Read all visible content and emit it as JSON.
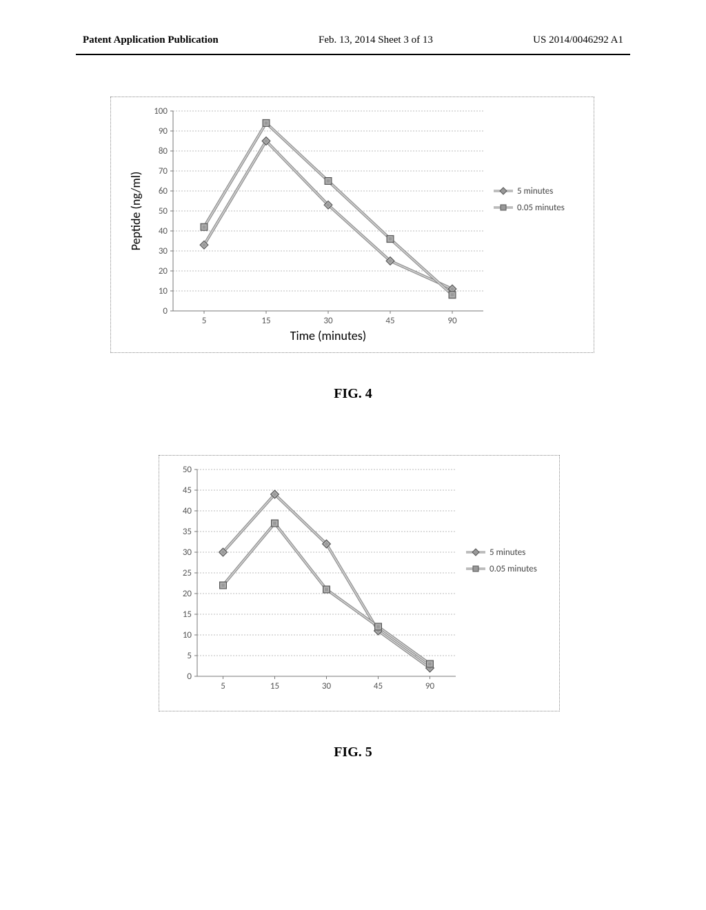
{
  "header": {
    "left": "Patent Application Publication",
    "mid": "Feb. 13, 2014  Sheet 3 of 13",
    "right": "US 2014/0046292 A1"
  },
  "fig4_label": "FIG. 4",
  "fig5_label": "FIG. 5",
  "chart1": {
    "type": "line",
    "x_categories": [
      "5",
      "15",
      "30",
      "45",
      "90"
    ],
    "x_label": "Time (minutes)",
    "y_label": "Peptide (ng/ml)",
    "ylim": [
      0,
      100
    ],
    "ytick_step": 10,
    "grid_color": "#bbbbbb",
    "background_color": "#ffffff",
    "axis_fontsize": 13,
    "label_fontsize": 18,
    "series": [
      {
        "name": "5 minutes",
        "marker": "diamond",
        "color_outer": "#888888",
        "color_inner": "#cccccc",
        "values": [
          33,
          85,
          53,
          25,
          11
        ]
      },
      {
        "name": "0.05 minutes",
        "marker": "square",
        "color_outer": "#888888",
        "color_inner": "#cccccc",
        "values": [
          42,
          94,
          65,
          36,
          8
        ]
      }
    ],
    "legend_items": [
      "5 minutes",
      "0.05 minutes"
    ]
  },
  "chart2": {
    "type": "line",
    "x_categories": [
      "5",
      "15",
      "30",
      "45",
      "90"
    ],
    "x_label": "",
    "y_label": "",
    "ylim": [
      0,
      50
    ],
    "ytick_step": 5,
    "grid_color": "#bbbbbb",
    "background_color": "#ffffff",
    "axis_fontsize": 13,
    "label_fontsize": 18,
    "series": [
      {
        "name": "5 minutes",
        "marker": "diamond",
        "color_outer": "#888888",
        "color_inner": "#cccccc",
        "values": [
          30,
          44,
          32,
          11,
          2
        ]
      },
      {
        "name": "0.05 minutes",
        "marker": "square",
        "color_outer": "#888888",
        "color_inner": "#cccccc",
        "values": [
          22,
          37,
          21,
          12,
          3
        ]
      }
    ],
    "legend_items": [
      "5 minutes",
      "0.05 minutes"
    ]
  }
}
